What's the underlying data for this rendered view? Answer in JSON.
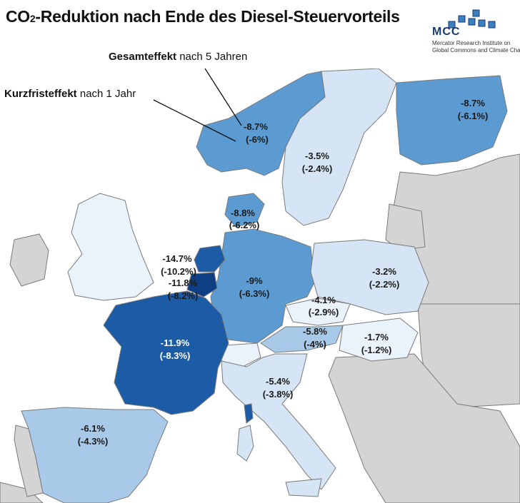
{
  "title": {
    "main": "CO",
    "sub": "2",
    "rest": "-Reduktion nach Ende des Diesel-Steuervorteils"
  },
  "logo": {
    "abbr": "MCC",
    "line1": "Mercator Research Institute on",
    "line2": "Global Commons and Climate Change",
    "accent_color": "#3a7fc1"
  },
  "legend": {
    "long_term_bold": "Gesamteffekt",
    "long_term_rest": " nach 5 Jahren",
    "short_term_bold": "Kurzfristeffekt",
    "short_term_rest": " nach 1 Jahr"
  },
  "colors": {
    "sea": "#ffffff",
    "non_data": "#d4d4d4",
    "border": "#7a7a7a",
    "scale": [
      "#eaf2fb",
      "#d5e5f5",
      "#a8c9e8",
      "#5b9bd2",
      "#3a7fc1",
      "#1c5ca6",
      "#0e3f84"
    ]
  },
  "countries": [
    {
      "name": "Norway",
      "total": "-8.7%",
      "short": "(-6%)"
    },
    {
      "name": "Sweden",
      "total": "-3.5%",
      "short": "(-2.4%)"
    },
    {
      "name": "Finland",
      "total": "-8.7%",
      "short": "(-6.1%)"
    },
    {
      "name": "Denmark",
      "total": "-8.8%",
      "short": "(-6.2%)"
    },
    {
      "name": "Netherlands",
      "total": "-14.7%",
      "short": "(-10.2%)"
    },
    {
      "name": "Belgium",
      "total": "-11.8%",
      "short": "(-8.2%)"
    },
    {
      "name": "Germany",
      "total": "-9%",
      "short": "(-6.3%)"
    },
    {
      "name": "Poland",
      "total": "-3.2%",
      "short": "(-2.2%)"
    },
    {
      "name": "Czechia",
      "total": "-4.1%",
      "short": "(-2.9%)"
    },
    {
      "name": "Austria",
      "total": "-5.8%",
      "short": "(-4%)"
    },
    {
      "name": "Hungary",
      "total": "-1.7%",
      "short": "(-1.2%)"
    },
    {
      "name": "France",
      "total": "-11.9%",
      "short": "(-8.3%)"
    },
    {
      "name": "Italy",
      "total": "-5.4%",
      "short": "(-3.8%)"
    },
    {
      "name": "Spain",
      "total": "-6.1%",
      "short": "(-4.3%)"
    }
  ]
}
